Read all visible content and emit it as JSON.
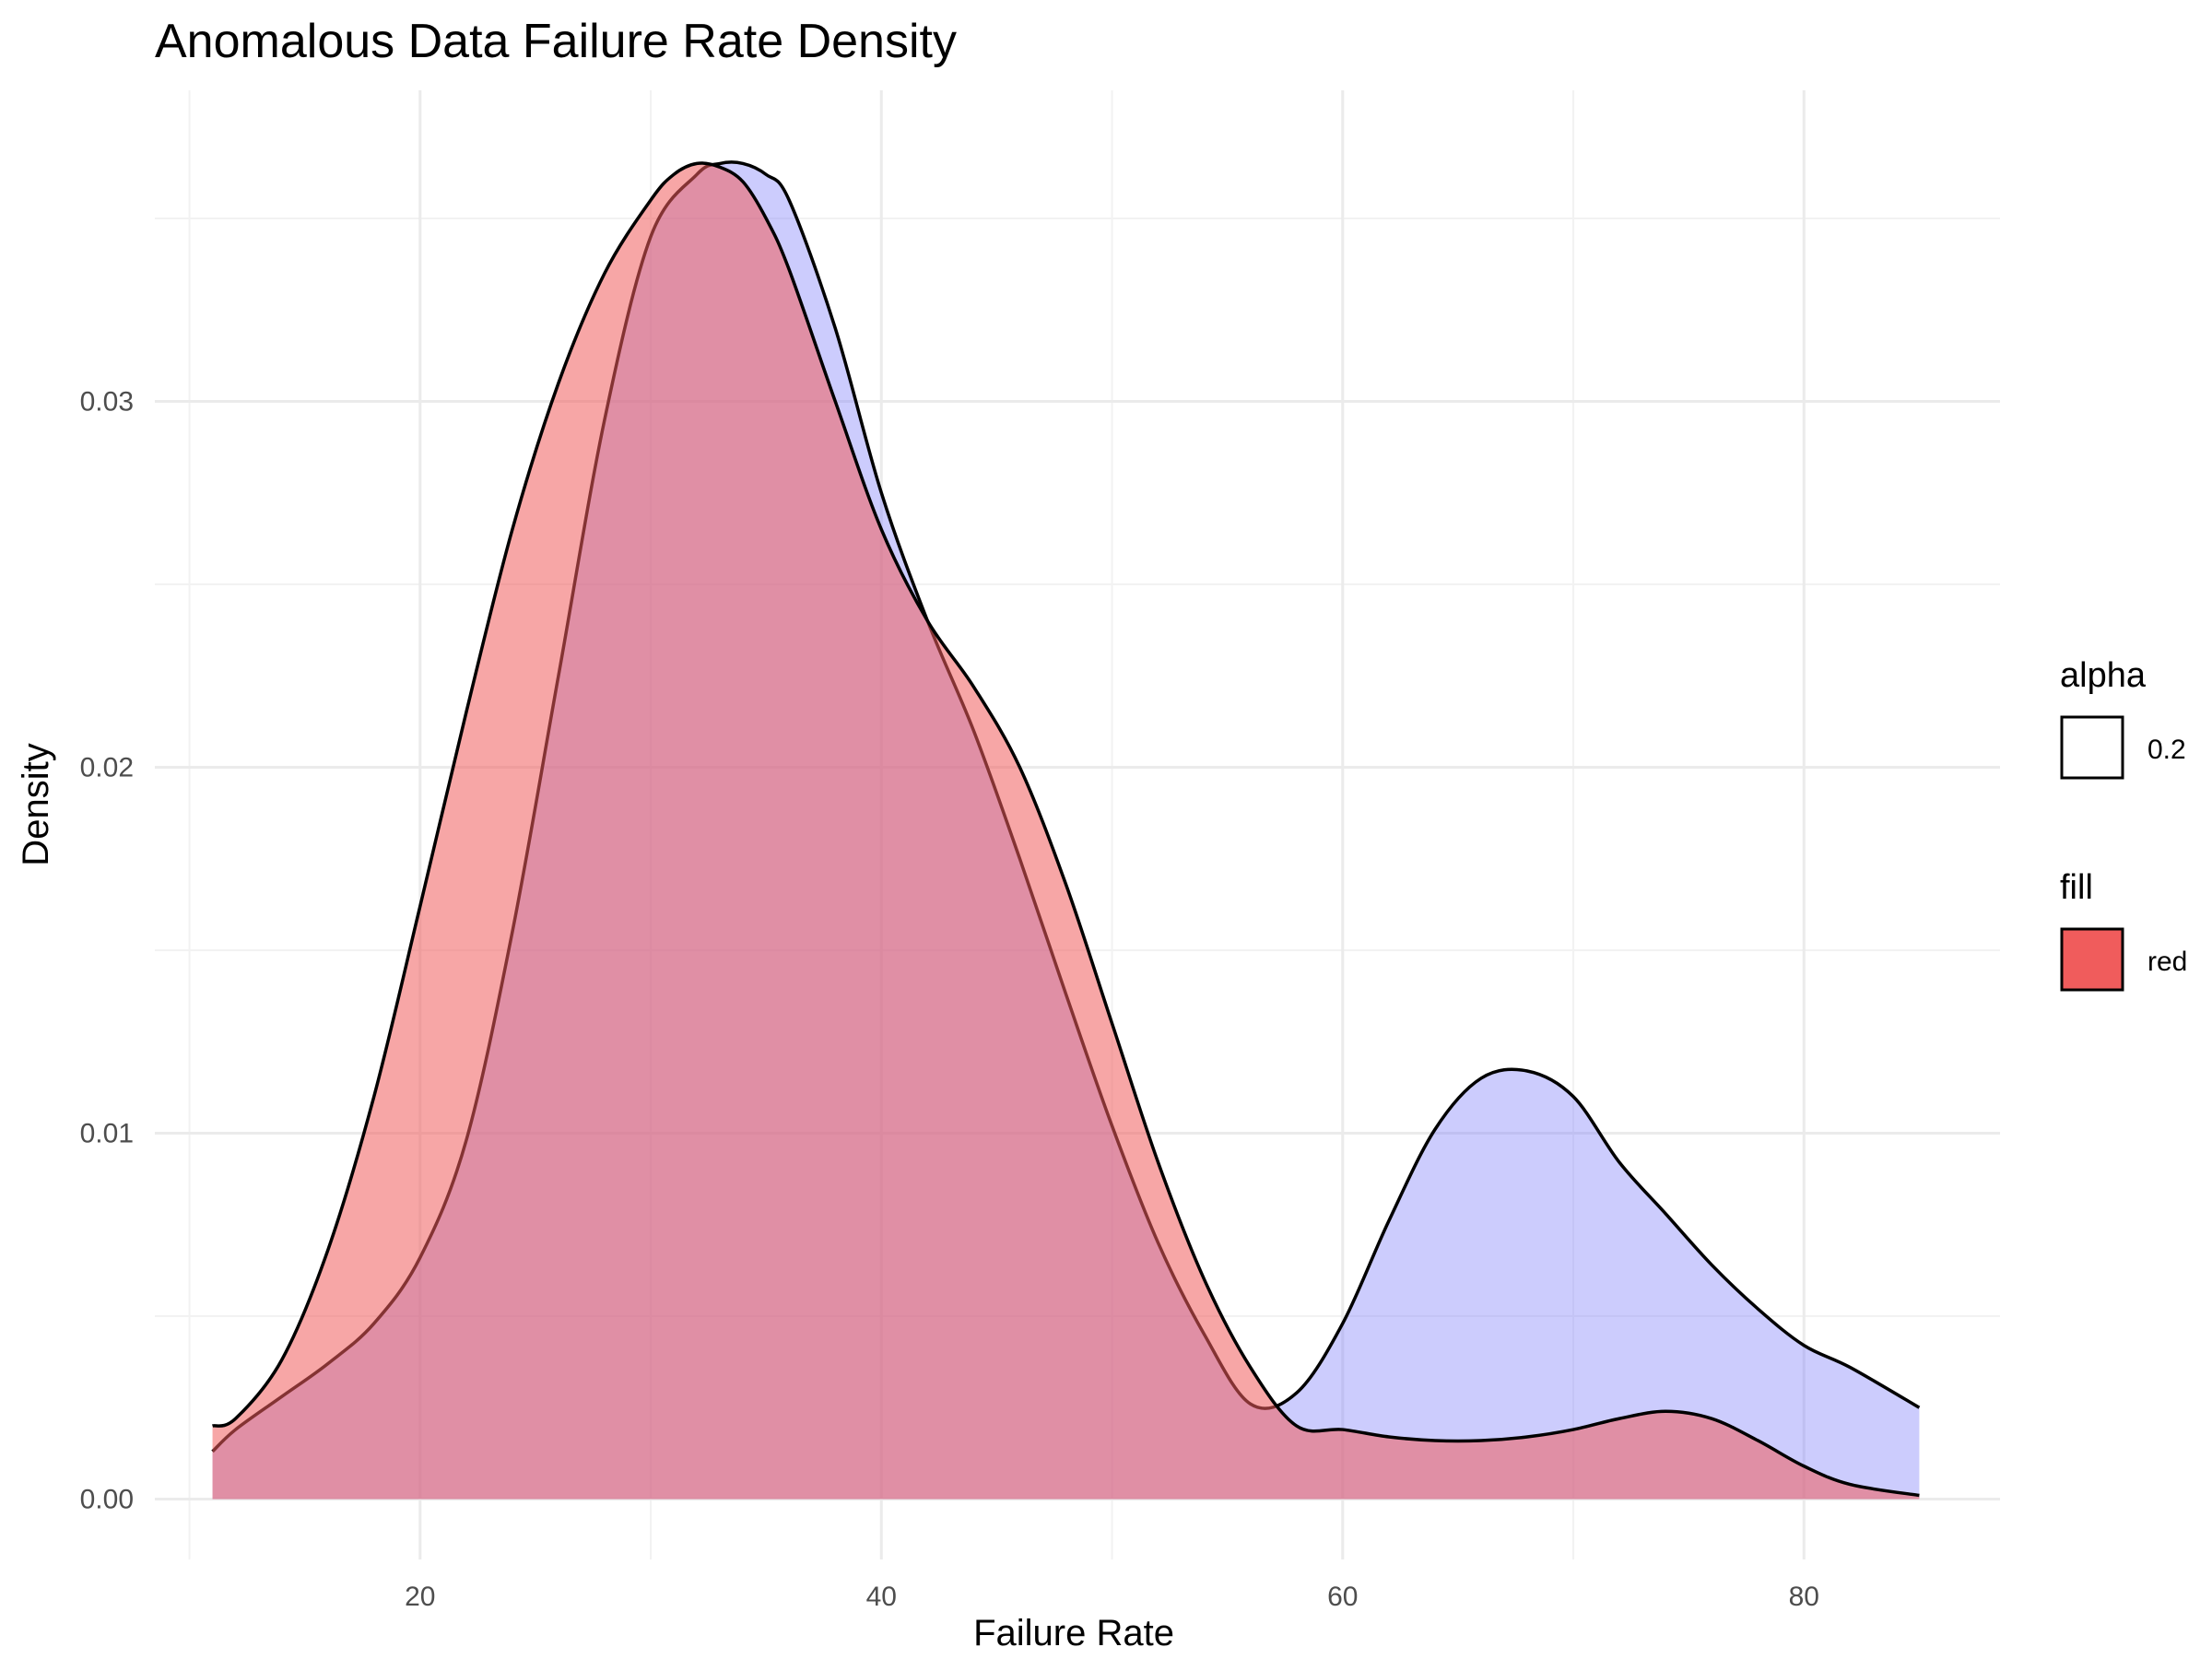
{
  "chart_data": {
    "type": "area",
    "title": "Anomalous Data Failure Rate Density",
    "xlabel": "Failure Rate",
    "ylabel": "Density",
    "xlim": [
      8.5,
      88.5
    ],
    "ylim": [
      -0.00165,
      0.0385
    ],
    "x_ticks": [
      20,
      40,
      60,
      80
    ],
    "x_tick_labels": [
      "20",
      "40",
      "60",
      "80"
    ],
    "y_ticks": [
      0,
      0.01,
      0.02,
      0.03
    ],
    "y_tick_labels": [
      "0.00",
      "0.01",
      "0.02",
      "0.03"
    ],
    "grid": true,
    "legend_position": "right",
    "legend": [
      {
        "title": "alpha",
        "label": "0.2",
        "key_color": "#ffffff"
      },
      {
        "title": "fill",
        "label": "red",
        "key_color": "#f05c5c"
      }
    ],
    "series": [
      {
        "color": "#7f7ffa",
        "opacity": 0.4,
        "x": [
          11,
          12,
          14,
          16,
          18,
          20,
          22,
          24,
          26,
          28,
          30,
          32,
          33,
          34,
          35,
          36,
          38,
          40,
          42,
          44,
          46,
          48,
          50,
          52,
          54,
          56,
          58,
          60,
          62,
          64,
          66,
          68,
          70,
          72,
          74,
          76,
          78,
          80,
          82,
          85
        ],
        "y": [
          0.0013,
          0.0019,
          0.0028,
          0.0037,
          0.0048,
          0.0066,
          0.0098,
          0.0155,
          0.0225,
          0.0295,
          0.0345,
          0.0362,
          0.0365,
          0.0365,
          0.0362,
          0.0355,
          0.032,
          0.0275,
          0.024,
          0.021,
          0.0175,
          0.0138,
          0.0102,
          0.007,
          0.0045,
          0.0026,
          0.0029,
          0.0048,
          0.0076,
          0.0101,
          0.0115,
          0.0117,
          0.011,
          0.0092,
          0.0078,
          0.0064,
          0.0052,
          0.0042,
          0.0036,
          0.0025
        ]
      },
      {
        "color": "#f05c5c",
        "opacity": 0.55,
        "x": [
          11,
          12,
          14,
          16,
          18,
          20,
          22,
          24,
          26,
          28,
          30,
          31,
          32,
          33,
          34,
          35,
          36,
          38,
          40,
          42,
          44,
          46,
          48,
          50,
          52,
          54,
          56,
          58,
          60,
          62,
          64,
          66,
          68,
          70,
          72,
          74,
          76,
          78,
          80,
          82,
          85
        ],
        "y": [
          0.002,
          0.0022,
          0.0038,
          0.0068,
          0.011,
          0.0162,
          0.0215,
          0.0265,
          0.0305,
          0.0335,
          0.0355,
          0.0362,
          0.0365,
          0.0364,
          0.036,
          0.035,
          0.0336,
          0.03,
          0.0265,
          0.024,
          0.0222,
          0.02,
          0.0168,
          0.013,
          0.0092,
          0.006,
          0.0036,
          0.002,
          0.0019,
          0.0017,
          0.0016,
          0.0016,
          0.0017,
          0.0019,
          0.0022,
          0.0024,
          0.0022,
          0.0016,
          0.0009,
          0.0004,
          0.0001
        ]
      }
    ]
  }
}
